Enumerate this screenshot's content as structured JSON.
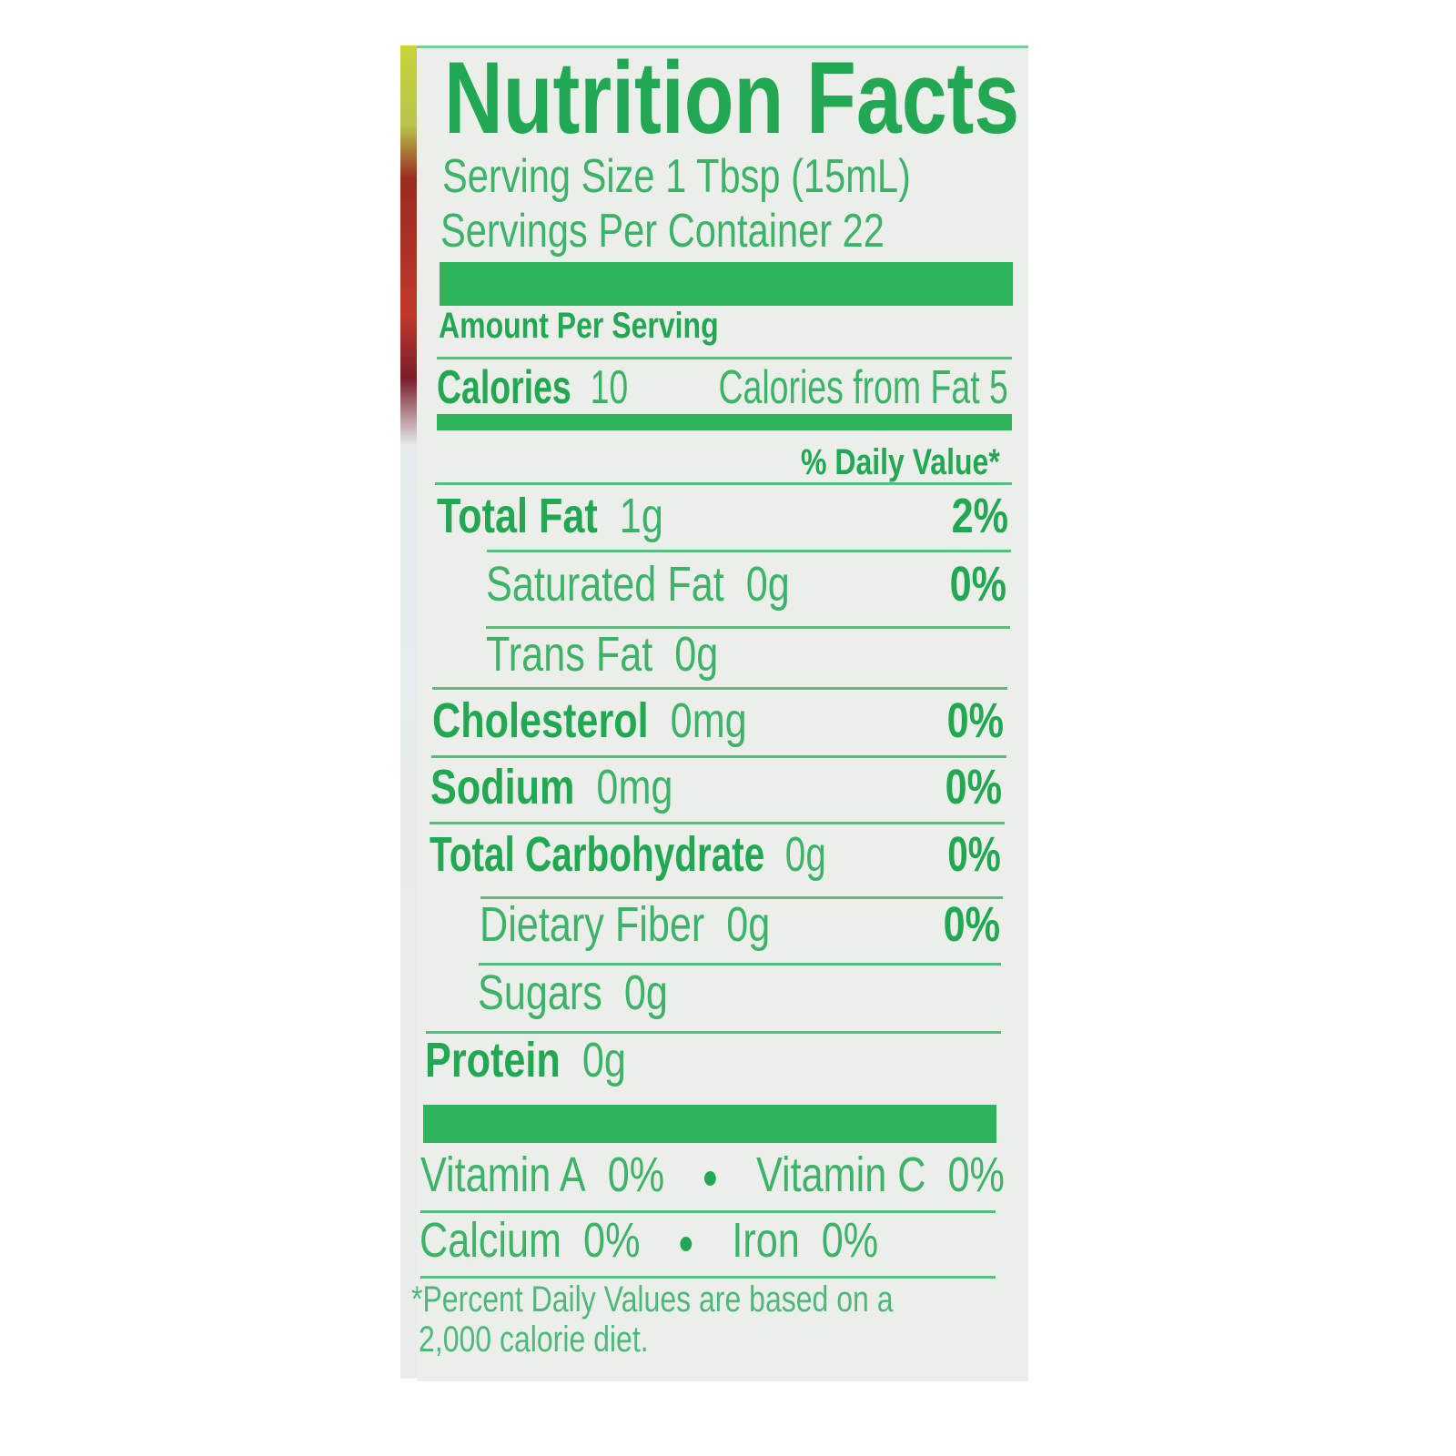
{
  "title": "Nutrition Facts",
  "serving_size": "Serving Size 1 Tbsp (15mL)",
  "servings_per_container": "Servings Per Container 22",
  "amount_per_serving": "Amount Per Serving",
  "calories": {
    "label": "Calories",
    "value": "10",
    "from_fat": "Calories from Fat 5"
  },
  "daily_value_header": "% Daily Value*",
  "nutrients": [
    {
      "label": "Total Fat",
      "amount": "1g",
      "dv": "2%"
    },
    {
      "label": "Saturated Fat",
      "amount": "0g",
      "dv": "0%"
    },
    {
      "label": "Trans Fat",
      "amount": "0g",
      "dv": ""
    },
    {
      "label": "Cholesterol",
      "amount": "0mg",
      "dv": "0%"
    },
    {
      "label": "Sodium",
      "amount": "0mg",
      "dv": "0%"
    },
    {
      "label": "Total Carbohydrate",
      "amount": "0g",
      "dv": "0%"
    },
    {
      "label": "Dietary Fiber",
      "amount": "0g",
      "dv": "0%"
    },
    {
      "label": "Sugars",
      "amount": "0g",
      "dv": ""
    },
    {
      "label": "Protein",
      "amount": "0g",
      "dv": ""
    }
  ],
  "vitamins": [
    {
      "label": "Vitamin A",
      "value": "0%"
    },
    {
      "label": "Vitamin C",
      "value": "0%"
    },
    {
      "label": "Calcium",
      "value": "0%"
    },
    {
      "label": "Iron",
      "value": "0%"
    }
  ],
  "footnote_line1": "*Percent Daily Values are based on a",
  "footnote_line2": "2,000 calorie diet.",
  "colors": {
    "text": "#3cb368",
    "bold_text": "#22a853",
    "bars": "#2db35a",
    "background": "#eceeea"
  }
}
